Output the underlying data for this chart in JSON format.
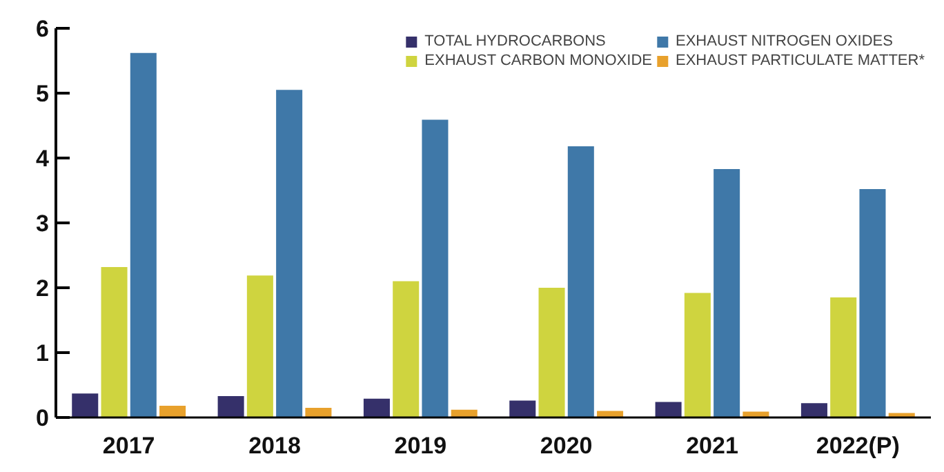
{
  "chart_data": {
    "type": "bar",
    "categories": [
      "2017",
      "2018",
      "2019",
      "2020",
      "2021",
      "2022(P)"
    ],
    "series": [
      {
        "name": "TOTAL HYDROCARBONS",
        "color": "#35306a",
        "values": [
          0.37,
          0.33,
          0.29,
          0.26,
          0.24,
          0.22
        ]
      },
      {
        "name": "EXHAUST CARBON MONOXIDE",
        "color": "#cfd43f",
        "values": [
          2.32,
          2.19,
          2.1,
          2.0,
          1.92,
          1.85
        ]
      },
      {
        "name": "EXHAUST NITROGEN OXIDES",
        "color": "#3f78a8",
        "values": [
          5.62,
          5.05,
          4.59,
          4.18,
          3.83,
          3.52
        ]
      },
      {
        "name": "EXHAUST PARTICULATE MATTER*",
        "color": "#e8a12c",
        "values": [
          0.18,
          0.15,
          0.12,
          0.1,
          0.09,
          0.07
        ]
      }
    ],
    "ylim": [
      0,
      6
    ],
    "yticks": [
      0,
      1,
      2,
      3,
      4,
      5,
      6
    ],
    "grid": false,
    "legend": "top right"
  }
}
